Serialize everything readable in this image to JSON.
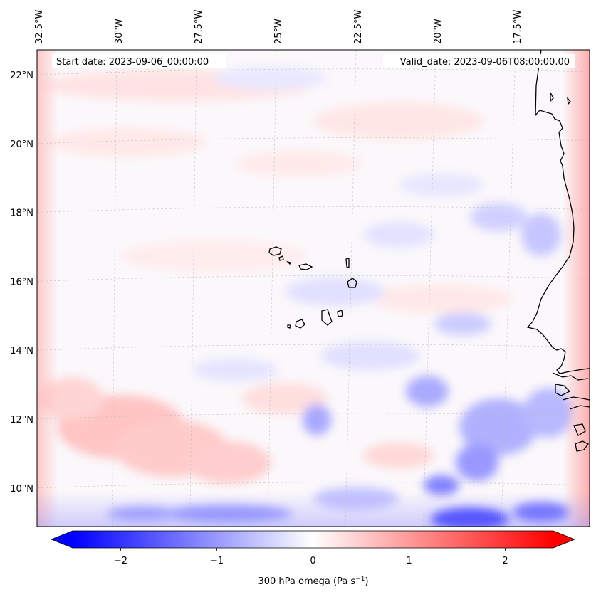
{
  "map": {
    "start_date_text": "Start date: 2023-09-06_00:00:00",
    "valid_date_text": "Valid_date: 2023-09-06T08:00:00.00",
    "lon_ticks": [
      {
        "lon": -32.5,
        "label": "32.5°W"
      },
      {
        "lon": -30.0,
        "label": "30°W"
      },
      {
        "lon": -27.5,
        "label": "27.5°W"
      },
      {
        "lon": -25.0,
        "label": "25°W"
      },
      {
        "lon": -22.5,
        "label": "22.5°W"
      },
      {
        "lon": -20.0,
        "label": "20°W"
      },
      {
        "lon": -17.5,
        "label": "17.5°W"
      }
    ],
    "lat_ticks": [
      {
        "lat": 22,
        "label": "22°N"
      },
      {
        "lat": 20,
        "label": "20°N"
      },
      {
        "lat": 18,
        "label": "18°N"
      },
      {
        "lat": 16,
        "label": "16°N"
      },
      {
        "lat": 14,
        "label": "14°N"
      },
      {
        "lat": 12,
        "label": "12°N"
      },
      {
        "lat": 10,
        "label": "10°N"
      }
    ],
    "field": "300 hPa omega",
    "colormap": "bwr",
    "coastline_color": "#000000",
    "region": "Cabo Verde and West African coast"
  },
  "colorbar": {
    "label_main": "300 hPa omega (Pa s",
    "label_exp": "−1",
    "label_close": ")",
    "min": -2.5,
    "max": 2.5,
    "extend": "both",
    "ticks": [
      {
        "value": -2,
        "label": "−2"
      },
      {
        "value": -1,
        "label": "−1"
      },
      {
        "value": 0,
        "label": "0"
      },
      {
        "value": 1,
        "label": "1"
      },
      {
        "value": 2,
        "label": "2"
      }
    ],
    "colors": {
      "low": "#0000ff",
      "mid": "#ffffff",
      "high": "#ff0000"
    }
  }
}
